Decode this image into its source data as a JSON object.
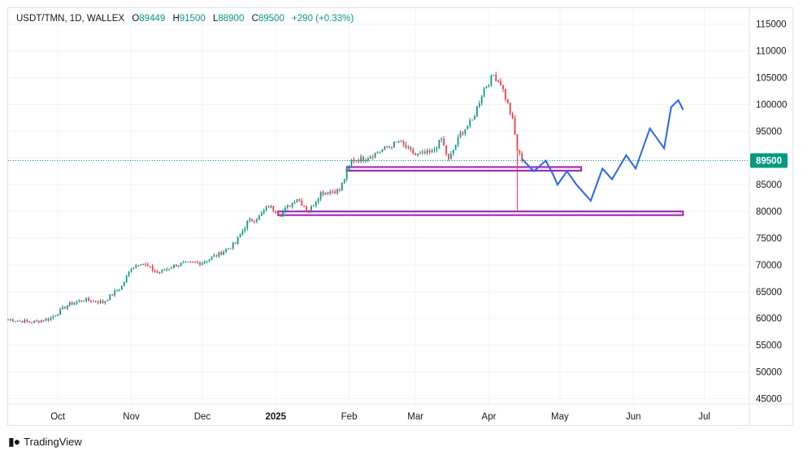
{
  "header": {
    "symbol": "USDT/TMN, 1D, WALLEX",
    "open_label": "O",
    "open": "89449",
    "high_label": "H",
    "high": "91500",
    "low_label": "L",
    "low": "88900",
    "close_label": "C",
    "close": "89500",
    "change": "+290 (+0.33%)"
  },
  "footer": {
    "brand": "TradingView",
    "logo_icon": "tradingview-logo-icon"
  },
  "colors": {
    "up": "#089981",
    "down": "#f23645",
    "zone": "#9c27b0",
    "projection": "#2962ff",
    "price_line": "#089981"
  },
  "chart_data": {
    "type": "candlestick",
    "title": "USDT/TMN, 1D, WALLEX",
    "x_ticks": [
      "Oct",
      "Nov",
      "Dec",
      "2025",
      "Feb",
      "Mar",
      "Apr",
      "May",
      "Jun",
      "Jul"
    ],
    "x_tick_dates": [
      "2024-10-01",
      "2024-11-01",
      "2024-12-01",
      "2025-01-01",
      "2025-02-01",
      "2025-03-01",
      "2025-04-01",
      "2025-05-01",
      "2025-06-01",
      "2025-07-01"
    ],
    "y_ticks": [
      45000,
      50000,
      55000,
      60000,
      65000,
      70000,
      75000,
      80000,
      85000,
      90000,
      95000,
      100000,
      105000,
      110000,
      115000
    ],
    "ylim": [
      44000,
      118000
    ],
    "xlim": [
      "2024-09-10",
      "2025-07-20"
    ],
    "grid": true,
    "last_price": 89500,
    "price_path_key_points": [
      {
        "date": "2024-09-10",
        "price": 59800
      },
      {
        "date": "2024-09-20",
        "price": 59300
      },
      {
        "date": "2024-09-28",
        "price": 60000
      },
      {
        "date": "2024-10-05",
        "price": 62500
      },
      {
        "date": "2024-10-12",
        "price": 63500
      },
      {
        "date": "2024-10-20",
        "price": 63000
      },
      {
        "date": "2024-10-28",
        "price": 66000
      },
      {
        "date": "2024-11-01",
        "price": 69500
      },
      {
        "date": "2024-11-05",
        "price": 70500
      },
      {
        "date": "2024-11-12",
        "price": 68500
      },
      {
        "date": "2024-11-20",
        "price": 70000
      },
      {
        "date": "2024-12-01",
        "price": 70500
      },
      {
        "date": "2024-12-08",
        "price": 72000
      },
      {
        "date": "2024-12-15",
        "price": 74000
      },
      {
        "date": "2024-12-20",
        "price": 78000
      },
      {
        "date": "2024-12-25",
        "price": 79000
      },
      {
        "date": "2024-12-29",
        "price": 81000
      },
      {
        "date": "2025-01-03",
        "price": 79500
      },
      {
        "date": "2025-01-10",
        "price": 82500
      },
      {
        "date": "2025-01-15",
        "price": 80000
      },
      {
        "date": "2025-01-20",
        "price": 83500
      },
      {
        "date": "2025-01-28",
        "price": 84000
      },
      {
        "date": "2025-02-02",
        "price": 89500
      },
      {
        "date": "2025-02-08",
        "price": 90000
      },
      {
        "date": "2025-02-15",
        "price": 91500
      },
      {
        "date": "2025-02-22",
        "price": 93000
      },
      {
        "date": "2025-03-01",
        "price": 90500
      },
      {
        "date": "2025-03-08",
        "price": 91000
      },
      {
        "date": "2025-03-12",
        "price": 93500
      },
      {
        "date": "2025-03-15",
        "price": 89500
      },
      {
        "date": "2025-03-20",
        "price": 94500
      },
      {
        "date": "2025-03-25",
        "price": 97000
      },
      {
        "date": "2025-03-30",
        "price": 103000
      },
      {
        "date": "2025-04-03",
        "price": 105500
      },
      {
        "date": "2025-04-06",
        "price": 104000
      },
      {
        "date": "2025-04-09",
        "price": 100000
      },
      {
        "date": "2025-04-11",
        "price": 97000
      },
      {
        "date": "2025-04-13",
        "price": 91500
      },
      {
        "date": "2025-04-15",
        "price": 89500
      }
    ],
    "wick_low": {
      "date": "2025-04-13",
      "price": 80000
    },
    "support_zones": [
      {
        "start": "2025-01-31",
        "end": "2025-05-10",
        "top": 88300,
        "bottom": 87600
      },
      {
        "start": "2025-01-02",
        "end": "2025-06-22",
        "top": 80000,
        "bottom": 79300
      }
    ],
    "projection_path": [
      {
        "date": "2025-04-15",
        "price": 89800
      },
      {
        "date": "2025-04-20",
        "price": 87500
      },
      {
        "date": "2025-04-25",
        "price": 89500
      },
      {
        "date": "2025-04-28",
        "price": 87000
      },
      {
        "date": "2025-04-30",
        "price": 85000
      },
      {
        "date": "2025-05-04",
        "price": 87500
      },
      {
        "date": "2025-05-08",
        "price": 85000
      },
      {
        "date": "2025-05-14",
        "price": 82000
      },
      {
        "date": "2025-05-19",
        "price": 88000
      },
      {
        "date": "2025-05-23",
        "price": 86000
      },
      {
        "date": "2025-05-29",
        "price": 90500
      },
      {
        "date": "2025-06-02",
        "price": 88000
      },
      {
        "date": "2025-06-08",
        "price": 95500
      },
      {
        "date": "2025-06-14",
        "price": 91800
      },
      {
        "date": "2025-06-17",
        "price": 99500
      },
      {
        "date": "2025-06-20",
        "price": 100800
      },
      {
        "date": "2025-06-22",
        "price": 99000
      }
    ]
  }
}
